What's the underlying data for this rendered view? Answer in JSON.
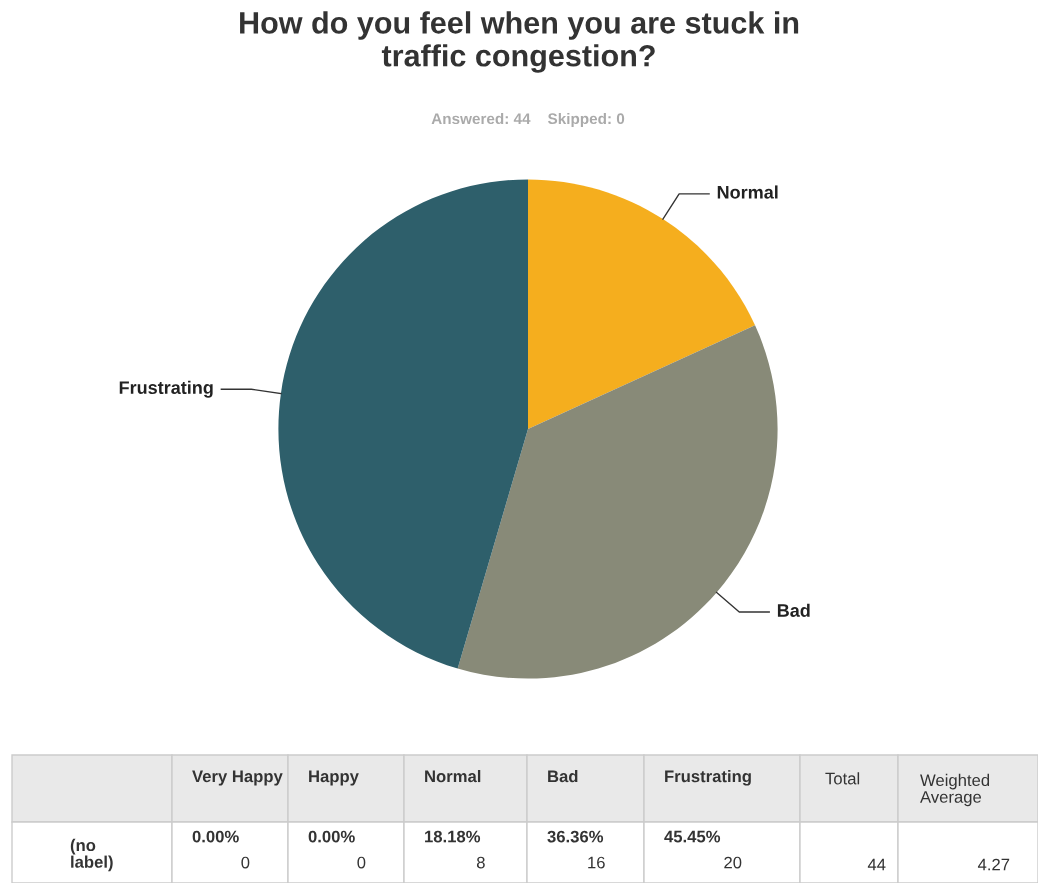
{
  "chart_data": {
    "type": "pie",
    "title": "How do you feel when you are stuck in\ntraffic congestion?",
    "subtitle": "Answered: 44    Skipped: 0",
    "categories": [
      "Very Happy",
      "Happy",
      "Normal",
      "Bad",
      "Frustrating"
    ],
    "values": [
      0,
      0,
      18.18,
      36.36,
      45.45
    ],
    "colors": [
      "#5fa8c8",
      "#9ab556",
      "#f5ae1e",
      "#888a78",
      "#2e5f6b"
    ],
    "annotations": [
      "(no label)",
      "0.00%",
      "0",
      "0.00%",
      "0",
      "18.18%",
      "8",
      "36.36%",
      "16",
      "45.45%",
      "20",
      "Total",
      "44",
      "Weighted Average",
      "4.27"
    ]
  }
}
